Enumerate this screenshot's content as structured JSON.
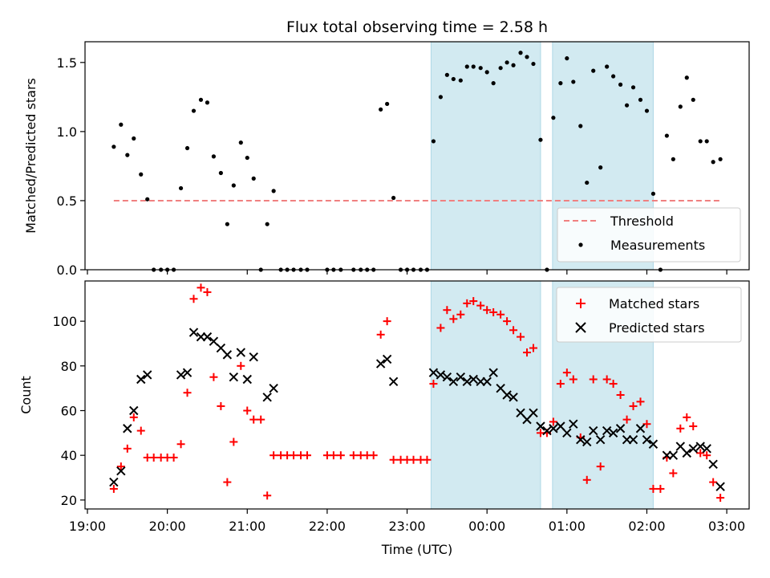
{
  "title": "Flux total observing time = 2.58 h",
  "colors": {
    "threshold": "#f08080",
    "measurement": "#000000",
    "matched": "#ff0000",
    "predicted": "#000000",
    "shade": "#add8e6"
  },
  "chart_data": [
    {
      "type": "scatter",
      "panel": "top",
      "ylabel": "Matched/Predicted stars",
      "xlabel": "",
      "xlim_hours": [
        18.97,
        27.28
      ],
      "ylim": [
        0,
        1.65
      ],
      "yticks": [
        "0.0",
        "0.5",
        "1.0",
        "1.5"
      ],
      "ytick_values": [
        0,
        0.5,
        1.0,
        1.5
      ],
      "legend_position": "lower right",
      "legend": {
        "threshold_label": "Threshold",
        "measurements_label": "Measurements"
      },
      "threshold": {
        "name": "Threshold",
        "y": 0.5,
        "x_range_hours": [
          19.33,
          26.92
        ],
        "style": "dashed"
      },
      "shaded_intervals_hours": [
        [
          23.3,
          24.67
        ],
        [
          24.82,
          26.08
        ]
      ],
      "series": [
        {
          "name": "Measurements",
          "points": [
            [
              19.33,
              0.89
            ],
            [
              19.42,
              1.05
            ],
            [
              19.5,
              0.83
            ],
            [
              19.58,
              0.95
            ],
            [
              19.67,
              0.69
            ],
            [
              19.75,
              0.51
            ],
            [
              19.83,
              0.0
            ],
            [
              19.92,
              0.0
            ],
            [
              20.0,
              0.0
            ],
            [
              20.08,
              0.0
            ],
            [
              20.17,
              0.59
            ],
            [
              20.25,
              0.88
            ],
            [
              20.33,
              1.15
            ],
            [
              20.42,
              1.23
            ],
            [
              20.5,
              1.21
            ],
            [
              20.58,
              0.82
            ],
            [
              20.67,
              0.7
            ],
            [
              20.75,
              0.33
            ],
            [
              20.83,
              0.61
            ],
            [
              20.92,
              0.92
            ],
            [
              21.0,
              0.81
            ],
            [
              21.08,
              0.66
            ],
            [
              21.17,
              0.0
            ],
            [
              21.25,
              0.33
            ],
            [
              21.33,
              0.57
            ],
            [
              21.42,
              0.0
            ],
            [
              21.5,
              0.0
            ],
            [
              21.58,
              0.0
            ],
            [
              21.67,
              0.0
            ],
            [
              21.75,
              0.0
            ],
            [
              22.0,
              0.0
            ],
            [
              22.08,
              0.0
            ],
            [
              22.17,
              0.0
            ],
            [
              22.33,
              0.0
            ],
            [
              22.42,
              0.0
            ],
            [
              22.5,
              0.0
            ],
            [
              22.58,
              0.0
            ],
            [
              22.67,
              1.16
            ],
            [
              22.75,
              1.2
            ],
            [
              22.83,
              0.52
            ],
            [
              22.92,
              0.0
            ],
            [
              23.0,
              0.0
            ],
            [
              23.08,
              0.0
            ],
            [
              23.17,
              0.0
            ],
            [
              23.25,
              0.0
            ],
            [
              23.33,
              0.93
            ],
            [
              23.42,
              1.25
            ],
            [
              23.5,
              1.41
            ],
            [
              23.58,
              1.38
            ],
            [
              23.67,
              1.37
            ],
            [
              23.75,
              1.47
            ],
            [
              23.83,
              1.47
            ],
            [
              23.92,
              1.46
            ],
            [
              24.0,
              1.43
            ],
            [
              24.08,
              1.35
            ],
            [
              24.17,
              1.46
            ],
            [
              24.25,
              1.5
            ],
            [
              24.33,
              1.48
            ],
            [
              24.42,
              1.57
            ],
            [
              24.5,
              1.54
            ],
            [
              24.58,
              1.49
            ],
            [
              24.67,
              0.94
            ],
            [
              24.75,
              0.0
            ],
            [
              24.83,
              1.1
            ],
            [
              24.92,
              1.35
            ],
            [
              25.0,
              1.53
            ],
            [
              25.08,
              1.36
            ],
            [
              25.17,
              1.04
            ],
            [
              25.25,
              0.63
            ],
            [
              25.33,
              1.44
            ],
            [
              25.42,
              0.74
            ],
            [
              25.5,
              1.47
            ],
            [
              25.58,
              1.4
            ],
            [
              25.67,
              1.34
            ],
            [
              25.75,
              1.19
            ],
            [
              25.83,
              1.32
            ],
            [
              25.92,
              1.23
            ],
            [
              26.0,
              1.15
            ],
            [
              26.08,
              0.55
            ],
            [
              26.17,
              0.0
            ],
            [
              26.25,
              0.97
            ],
            [
              26.33,
              0.8
            ],
            [
              26.42,
              1.18
            ],
            [
              26.5,
              1.39
            ],
            [
              26.58,
              1.23
            ],
            [
              26.67,
              0.93
            ],
            [
              26.75,
              0.93
            ],
            [
              26.83,
              0.78
            ],
            [
              26.92,
              0.8
            ]
          ]
        }
      ]
    },
    {
      "type": "scatter",
      "panel": "bottom",
      "xlabel": "Time (UTC)",
      "ylabel": "Count",
      "xlim_hours": [
        18.97,
        27.28
      ],
      "ylim": [
        16,
        118
      ],
      "xticks": [
        "19:00",
        "20:00",
        "21:00",
        "22:00",
        "23:00",
        "00:00",
        "01:00",
        "02:00",
        "03:00"
      ],
      "xtick_hours": [
        19,
        20,
        21,
        22,
        23,
        24,
        25,
        26,
        27
      ],
      "yticks": [
        "20",
        "40",
        "60",
        "80",
        "100"
      ],
      "ytick_values": [
        20,
        40,
        60,
        80,
        100
      ],
      "legend_position": "upper right",
      "legend": {
        "matched_label": "Matched stars",
        "predicted_label": "Predicted stars"
      },
      "shaded_intervals_hours": [
        [
          23.3,
          24.67
        ],
        [
          24.82,
          26.08
        ]
      ],
      "series": [
        {
          "name": "Matched stars",
          "marker": "plus",
          "points": [
            [
              19.33,
              25
            ],
            [
              19.42,
              35
            ],
            [
              19.5,
              43
            ],
            [
              19.58,
              57
            ],
            [
              19.67,
              51
            ],
            [
              19.75,
              39
            ],
            [
              19.83,
              39
            ],
            [
              19.92,
              39
            ],
            [
              20.0,
              39
            ],
            [
              20.08,
              39
            ],
            [
              20.17,
              45
            ],
            [
              20.25,
              68
            ],
            [
              20.33,
              110
            ],
            [
              20.42,
              115
            ],
            [
              20.5,
              113
            ],
            [
              20.58,
              75
            ],
            [
              20.67,
              62
            ],
            [
              20.75,
              28
            ],
            [
              20.83,
              46
            ],
            [
              20.92,
              80
            ],
            [
              21.0,
              60
            ],
            [
              21.08,
              56
            ],
            [
              21.17,
              56
            ],
            [
              21.25,
              22
            ],
            [
              21.33,
              40
            ],
            [
              21.42,
              40
            ],
            [
              21.5,
              40
            ],
            [
              21.58,
              40
            ],
            [
              21.67,
              40
            ],
            [
              21.75,
              40
            ],
            [
              22.0,
              40
            ],
            [
              22.08,
              40
            ],
            [
              22.17,
              40
            ],
            [
              22.33,
              40
            ],
            [
              22.42,
              40
            ],
            [
              22.5,
              40
            ],
            [
              22.58,
              40
            ],
            [
              22.67,
              94
            ],
            [
              22.75,
              100
            ],
            [
              22.83,
              38
            ],
            [
              22.92,
              38
            ],
            [
              23.0,
              38
            ],
            [
              23.08,
              38
            ],
            [
              23.17,
              38
            ],
            [
              23.25,
              38
            ],
            [
              23.33,
              72
            ],
            [
              23.42,
              97
            ],
            [
              23.5,
              105
            ],
            [
              23.58,
              101
            ],
            [
              23.67,
              103
            ],
            [
              23.75,
              108
            ],
            [
              23.83,
              109
            ],
            [
              23.92,
              107
            ],
            [
              24.0,
              105
            ],
            [
              24.08,
              104
            ],
            [
              24.17,
              103
            ],
            [
              24.25,
              100
            ],
            [
              24.33,
              96
            ],
            [
              24.42,
              93
            ],
            [
              24.5,
              86
            ],
            [
              24.58,
              88
            ],
            [
              24.67,
              50
            ],
            [
              24.75,
              50
            ],
            [
              24.83,
              55
            ],
            [
              24.92,
              72
            ],
            [
              25.0,
              77
            ],
            [
              25.08,
              74
            ],
            [
              25.17,
              48
            ],
            [
              25.25,
              29
            ],
            [
              25.33,
              74
            ],
            [
              25.42,
              35
            ],
            [
              25.5,
              74
            ],
            [
              25.58,
              72
            ],
            [
              25.67,
              67
            ],
            [
              25.75,
              56
            ],
            [
              25.83,
              62
            ],
            [
              25.92,
              64
            ],
            [
              26.0,
              54
            ],
            [
              26.08,
              25
            ],
            [
              26.17,
              25
            ],
            [
              26.25,
              39
            ],
            [
              26.33,
              32
            ],
            [
              26.42,
              52
            ],
            [
              26.5,
              57
            ],
            [
              26.58,
              53
            ],
            [
              26.67,
              41
            ],
            [
              26.75,
              40
            ],
            [
              26.83,
              28
            ],
            [
              26.92,
              21
            ]
          ]
        },
        {
          "name": "Predicted stars",
          "marker": "x",
          "points": [
            [
              19.33,
              28
            ],
            [
              19.42,
              33
            ],
            [
              19.5,
              52
            ],
            [
              19.58,
              60
            ],
            [
              19.67,
              74
            ],
            [
              19.75,
              76
            ],
            [
              20.17,
              76
            ],
            [
              20.25,
              77
            ],
            [
              20.33,
              95
            ],
            [
              20.42,
              93
            ],
            [
              20.5,
              93
            ],
            [
              20.58,
              91
            ],
            [
              20.67,
              88
            ],
            [
              20.75,
              85
            ],
            [
              20.83,
              75
            ],
            [
              20.92,
              86
            ],
            [
              21.0,
              74
            ],
            [
              21.08,
              84
            ],
            [
              21.25,
              66
            ],
            [
              21.33,
              70
            ],
            [
              22.67,
              81
            ],
            [
              22.75,
              83
            ],
            [
              22.83,
              73
            ],
            [
              23.33,
              77
            ],
            [
              23.42,
              76
            ],
            [
              23.5,
              75
            ],
            [
              23.58,
              73
            ],
            [
              23.67,
              75
            ],
            [
              23.75,
              73
            ],
            [
              23.83,
              74
            ],
            [
              23.92,
              73
            ],
            [
              24.0,
              73
            ],
            [
              24.08,
              77
            ],
            [
              24.17,
              70
            ],
            [
              24.25,
              67
            ],
            [
              24.33,
              66
            ],
            [
              24.42,
              59
            ],
            [
              24.5,
              56
            ],
            [
              24.58,
              59
            ],
            [
              24.67,
              53
            ],
            [
              24.75,
              51
            ],
            [
              24.83,
              52
            ],
            [
              24.92,
              53
            ],
            [
              25.0,
              50
            ],
            [
              25.08,
              54
            ],
            [
              25.17,
              47
            ],
            [
              25.25,
              46
            ],
            [
              25.33,
              51
            ],
            [
              25.42,
              47
            ],
            [
              25.5,
              51
            ],
            [
              25.58,
              50
            ],
            [
              25.67,
              52
            ],
            [
              25.75,
              47
            ],
            [
              25.83,
              47
            ],
            [
              25.92,
              52
            ],
            [
              26.0,
              47
            ],
            [
              26.08,
              45
            ],
            [
              26.25,
              40
            ],
            [
              26.33,
              40
            ],
            [
              26.42,
              44
            ],
            [
              26.5,
              41
            ],
            [
              26.58,
              43
            ],
            [
              26.67,
              44
            ],
            [
              26.75,
              43
            ],
            [
              26.83,
              36
            ],
            [
              26.92,
              26
            ]
          ]
        }
      ]
    }
  ]
}
